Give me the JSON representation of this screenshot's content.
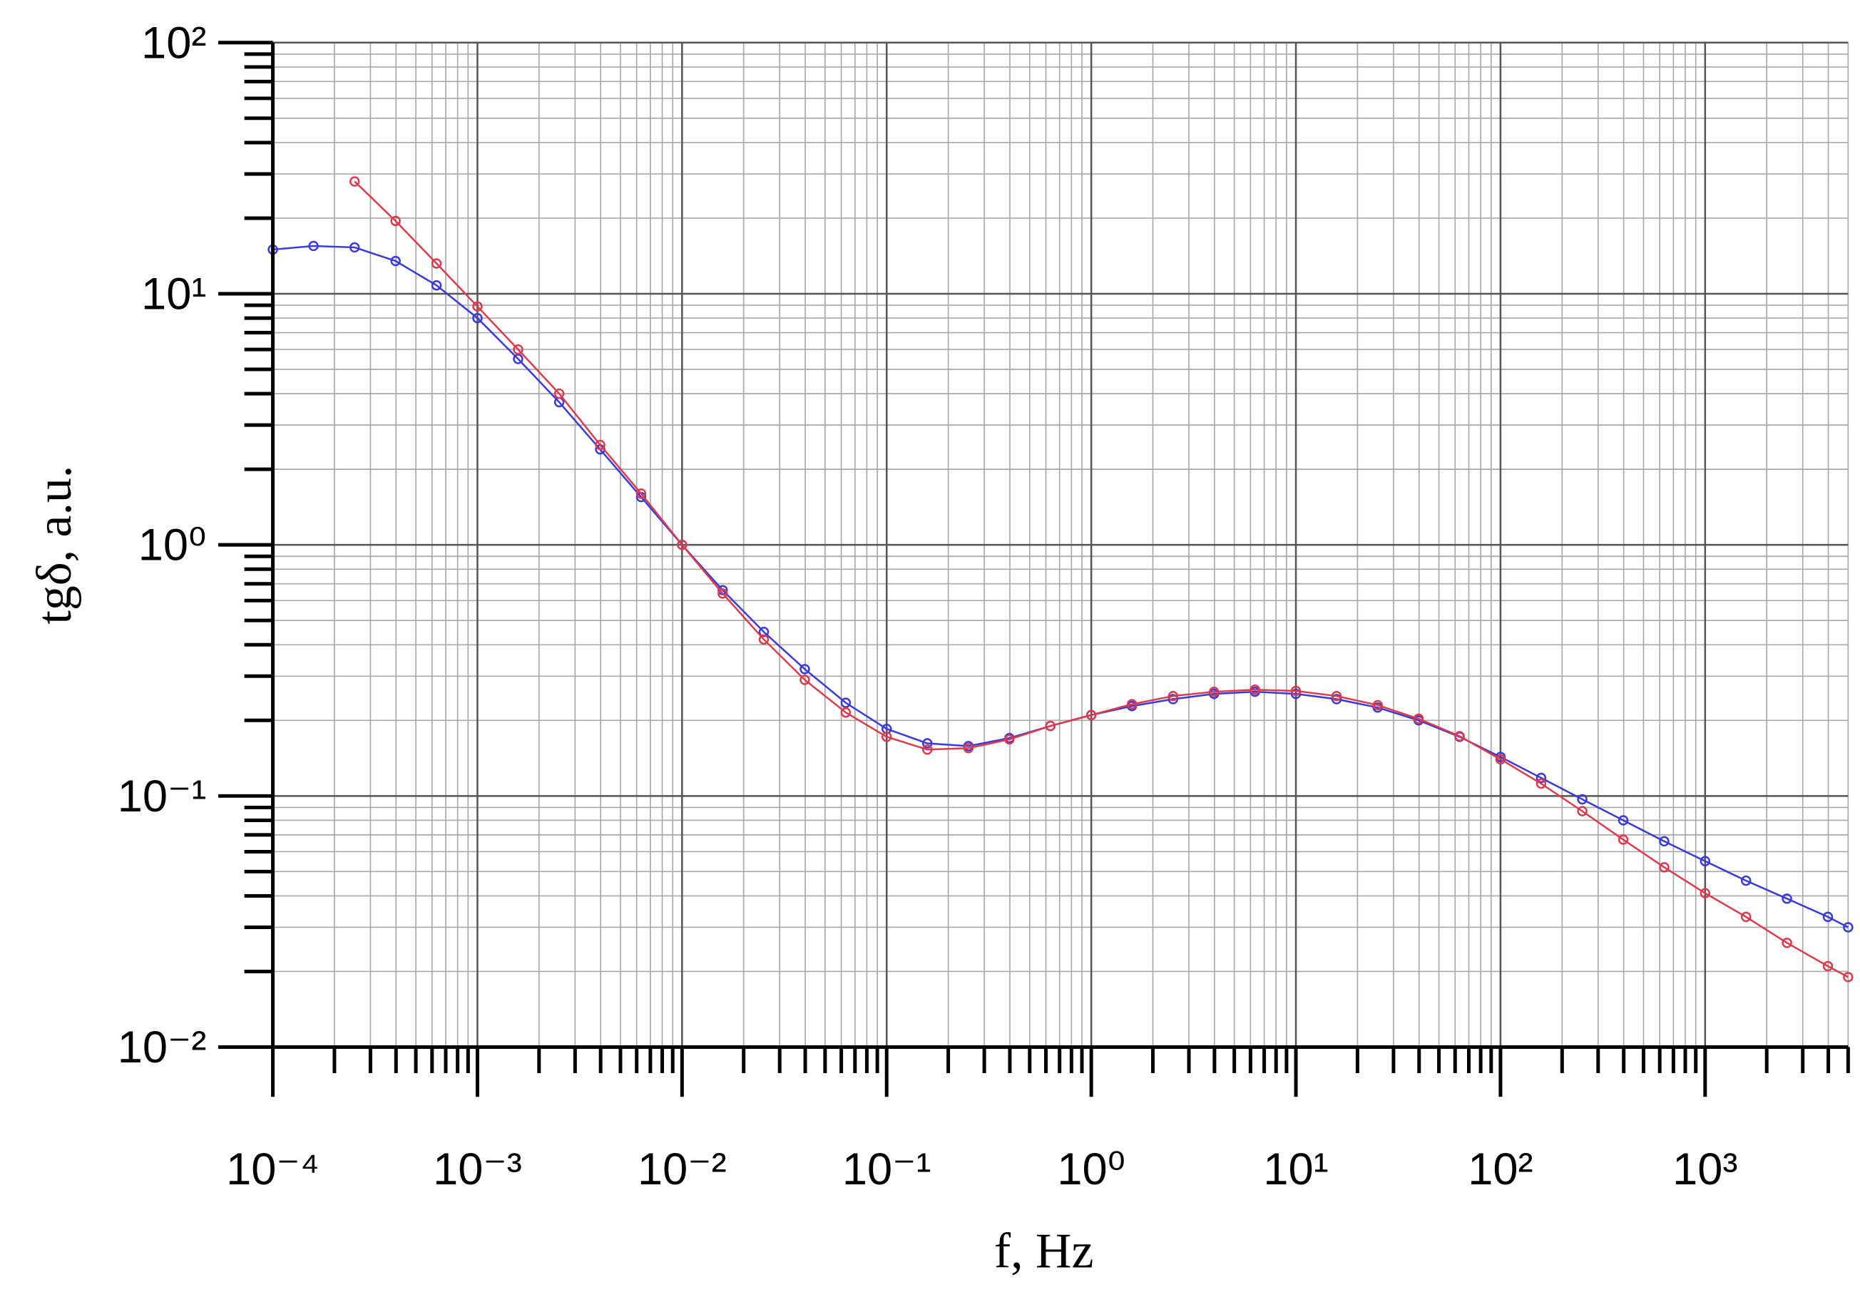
{
  "chart_data": {
    "type": "line",
    "xscale": "log",
    "yscale": "log",
    "grid": true,
    "marker": "circle",
    "xlabel": "f, Hz",
    "ylabel": "tgδ, a.u.",
    "xlim": [
      0.0001,
      5000
    ],
    "ylim": [
      0.01,
      100
    ],
    "xticks": [
      {
        "value": 0.0001,
        "label": "10⁻⁴"
      },
      {
        "value": 0.001,
        "label": "10⁻³"
      },
      {
        "value": 0.01,
        "label": "10⁻²"
      },
      {
        "value": 0.1,
        "label": "10⁻¹"
      },
      {
        "value": 1,
        "label": "10⁰"
      },
      {
        "value": 10,
        "label": "10¹"
      },
      {
        "value": 100,
        "label": "10²"
      },
      {
        "value": 1000,
        "label": "10³"
      }
    ],
    "yticks": [
      {
        "value": 0.01,
        "label": "10⁻²"
      },
      {
        "value": 0.1,
        "label": "10⁻¹"
      },
      {
        "value": 1,
        "label": "10⁰"
      },
      {
        "value": 10,
        "label": "10¹"
      },
      {
        "value": 100,
        "label": "10²"
      }
    ],
    "x": [
      0.0001,
      0.000158,
      0.000251,
      0.000398,
      0.000631,
      0.001,
      0.00158,
      0.00251,
      0.00398,
      0.00631,
      0.01,
      0.0158,
      0.0251,
      0.0398,
      0.0631,
      0.1,
      0.158,
      0.251,
      0.398,
      0.631,
      1,
      1.58,
      2.51,
      3.98,
      6.31,
      10,
      15.8,
      25.1,
      39.8,
      63.1,
      100,
      158,
      251,
      398,
      631,
      1000,
      1585,
      2512,
      3981,
      5000
    ],
    "series": [
      {
        "color": "#3a3ad8",
        "values": [
          15,
          15.5,
          15.3,
          13.5,
          10.8,
          8.0,
          5.5,
          3.7,
          2.4,
          1.55,
          1.0,
          0.66,
          0.45,
          0.32,
          0.235,
          0.185,
          0.162,
          0.158,
          0.17,
          0.19,
          0.21,
          0.228,
          0.243,
          0.255,
          0.26,
          0.255,
          0.243,
          0.225,
          0.2,
          0.172,
          0.143,
          0.118,
          0.097,
          0.08,
          0.066,
          0.055,
          0.046,
          0.039,
          0.033,
          0.03
        ]
      },
      {
        "color": "#dd3a4c",
        "values": [
          null,
          null,
          28,
          19.5,
          13.2,
          8.9,
          6.0,
          4.0,
          2.5,
          1.6,
          1.0,
          0.64,
          0.42,
          0.29,
          0.215,
          0.172,
          0.153,
          0.155,
          0.168,
          0.19,
          0.21,
          0.232,
          0.25,
          0.26,
          0.265,
          0.262,
          0.25,
          0.23,
          0.203,
          0.173,
          0.14,
          0.112,
          0.087,
          0.067,
          0.052,
          0.041,
          0.033,
          0.026,
          0.021,
          0.019
        ]
      }
    ]
  }
}
